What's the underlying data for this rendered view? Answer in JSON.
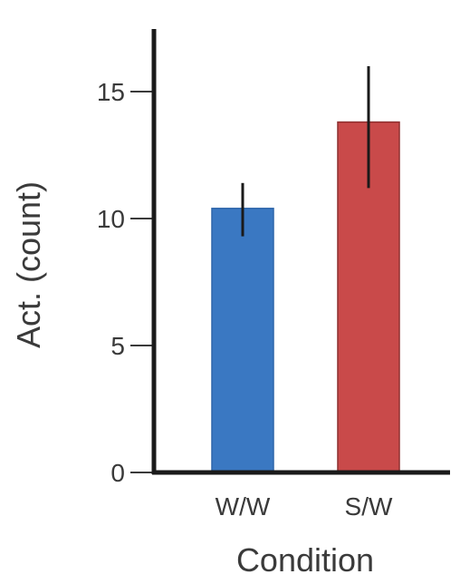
{
  "chart_data": {
    "type": "bar",
    "categories": [
      "W/W",
      "S/W"
    ],
    "values": [
      10.4,
      13.8
    ],
    "errors": [
      {
        "low": 9.3,
        "high": 11.4
      },
      {
        "low": 11.2,
        "high": 16.0
      }
    ],
    "colors": [
      "#3a78c2",
      "#c94a4a"
    ],
    "xlabel": "Condition",
    "ylabel": "Act. (count)",
    "ylim": [
      0,
      17.5
    ],
    "yticks": [
      0,
      5,
      10,
      15
    ],
    "grid": false,
    "legend": false
  }
}
